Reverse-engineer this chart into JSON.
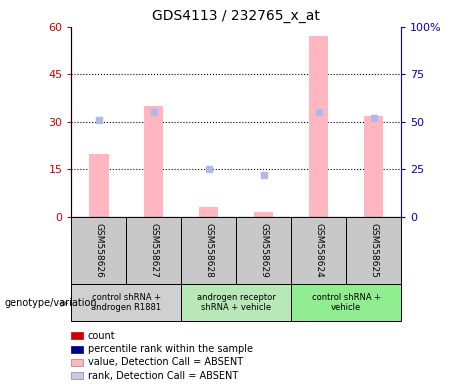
{
  "title": "GDS4113 / 232765_x_at",
  "samples": [
    "GSM558626",
    "GSM558627",
    "GSM558628",
    "GSM558629",
    "GSM558624",
    "GSM558625"
  ],
  "value_absent": [
    20,
    35,
    3,
    1.5,
    57,
    32
  ],
  "rank_absent": [
    51,
    55,
    25,
    22,
    55,
    52
  ],
  "ylim_left": [
    0,
    60
  ],
  "ylim_right": [
    0,
    100
  ],
  "yticks_left": [
    0,
    15,
    30,
    45,
    60
  ],
  "yticks_right": [
    0,
    25,
    50,
    75,
    100
  ],
  "ytick_labels_right": [
    "0",
    "25",
    "50",
    "75",
    "100%"
  ],
  "groups": [
    {
      "label": "control shRNA +\nandrogen R1881",
      "color": "#d0d0d0",
      "start": 0,
      "end": 2
    },
    {
      "label": "androgen receptor\nshRNA + vehicle",
      "color": "#b8e8b8",
      "start": 2,
      "end": 4
    },
    {
      "label": "control shRNA +\nvehicle",
      "color": "#90ee90",
      "start": 4,
      "end": 6
    }
  ],
  "bar_color_absent": "#ffb6c1",
  "marker_color_absent_rank": "#b0b8e8",
  "left_axis_color": "#cc0000",
  "right_axis_color": "#0000cc",
  "bg_color": "#ffffff",
  "legend_items": [
    {
      "label": "count",
      "color": "#cc0000"
    },
    {
      "label": "percentile rank within the sample",
      "color": "#00008b"
    },
    {
      "label": "value, Detection Call = ABSENT",
      "color": "#ffb6c1"
    },
    {
      "label": "rank, Detection Call = ABSENT",
      "color": "#c8c8e8"
    }
  ],
  "genotype_label": "genotype/variation",
  "sample_box_color": "#c8c8c8",
  "bar_width": 0.35
}
